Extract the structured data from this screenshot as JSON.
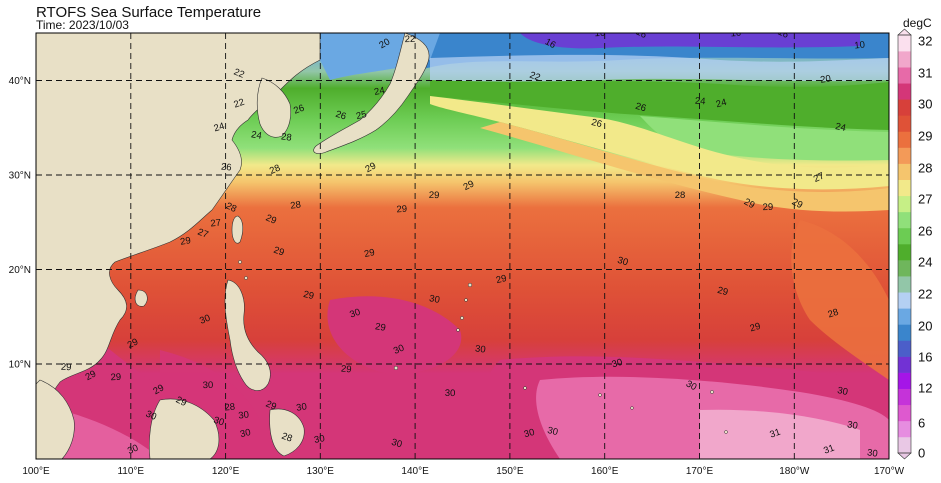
{
  "title": "RTOFS Sea Surface Temperature",
  "subtitle": "Time: 2023/10/03",
  "colorbar": {
    "unit": "degC",
    "levels": [
      "0",
      "2",
      "4",
      "6",
      "8",
      "10",
      "12",
      "14",
      "16",
      "18",
      "20",
      "22",
      "24",
      "25",
      "26",
      "27",
      "28",
      "29",
      "30",
      "31",
      "32"
    ],
    "level_labels": [
      "0",
      "6",
      "12",
      "16",
      "20",
      "22",
      "24",
      "26",
      "27",
      "28",
      "29",
      "30",
      "31",
      "32"
    ],
    "colors": [
      "#e9c8e5",
      "#e68de0",
      "#de59cf",
      "#c533d9",
      "#a515e7",
      "#7232d4",
      "#4b5ec9",
      "#3a85cc",
      "#6aa8e3",
      "#b4d0f3",
      "#92c6a8",
      "#6fb65c",
      "#4fae2c",
      "#6ccc53",
      "#90e07a",
      "#c6ef86",
      "#f2e98a",
      "#f5c56d",
      "#f39a58",
      "#eb703e",
      "#df5237",
      "#d7403a",
      "#d43678",
      "#e76aa8",
      "#f1a7cb",
      "#fbe0ee"
    ]
  },
  "axes": {
    "lon_ticks": [
      "100°E",
      "110°E",
      "120°E",
      "130°E",
      "140°E",
      "150°E",
      "160°E",
      "170°E",
      "180°W",
      "170°W"
    ],
    "lat_ticks": [
      "10°N",
      "20°N",
      "30°N",
      "40°N"
    ]
  },
  "contour_labels": [
    {
      "text": "20"
    },
    {
      "text": "22"
    },
    {
      "text": "16"
    },
    {
      "text": "16"
    },
    {
      "text": "16"
    },
    {
      "text": "16"
    },
    {
      "text": "16"
    },
    {
      "text": "10"
    },
    {
      "text": "22"
    },
    {
      "text": "20"
    },
    {
      "text": "22"
    },
    {
      "text": "24"
    },
    {
      "text": "26"
    },
    {
      "text": "25"
    },
    {
      "text": "26"
    },
    {
      "text": "24"
    },
    {
      "text": "26"
    },
    {
      "text": "24"
    },
    {
      "text": "24"
    },
    {
      "text": "22"
    },
    {
      "text": "24"
    },
    {
      "text": "26"
    },
    {
      "text": "28"
    },
    {
      "text": "28"
    },
    {
      "text": "26"
    },
    {
      "text": "27"
    },
    {
      "text": "24"
    },
    {
      "text": "29"
    },
    {
      "text": "29"
    },
    {
      "text": "29"
    },
    {
      "text": "28"
    },
    {
      "text": "29"
    },
    {
      "text": "29"
    },
    {
      "text": "29"
    },
    {
      "text": "29"
    },
    {
      "text": "28"
    },
    {
      "text": "27"
    },
    {
      "text": "29"
    },
    {
      "text": "28"
    },
    {
      "text": "27"
    },
    {
      "text": "29"
    },
    {
      "text": "29"
    },
    {
      "text": "29"
    },
    {
      "text": "30"
    },
    {
      "text": "29"
    },
    {
      "text": "29"
    },
    {
      "text": "29"
    },
    {
      "text": "29"
    },
    {
      "text": "28"
    },
    {
      "text": "30"
    },
    {
      "text": "30"
    },
    {
      "text": "29"
    },
    {
      "text": "30"
    },
    {
      "text": "30"
    },
    {
      "text": "30"
    },
    {
      "text": "29"
    },
    {
      "text": "29"
    },
    {
      "text": "29"
    },
    {
      "text": "29"
    },
    {
      "text": "30"
    },
    {
      "text": "29"
    },
    {
      "text": "30"
    },
    {
      "text": "30"
    },
    {
      "text": "29"
    },
    {
      "text": "29"
    },
    {
      "text": "28"
    },
    {
      "text": "30"
    },
    {
      "text": "30"
    },
    {
      "text": "29"
    },
    {
      "text": "30"
    },
    {
      "text": "28"
    },
    {
      "text": "30"
    },
    {
      "text": "30"
    },
    {
      "text": "30"
    },
    {
      "text": "30"
    },
    {
      "text": "30"
    },
    {
      "text": "30"
    },
    {
      "text": "30"
    },
    {
      "text": "30"
    },
    {
      "text": "31"
    },
    {
      "text": "30"
    },
    {
      "text": "31"
    },
    {
      "text": "30"
    },
    {
      "text": "30"
    }
  ]
}
